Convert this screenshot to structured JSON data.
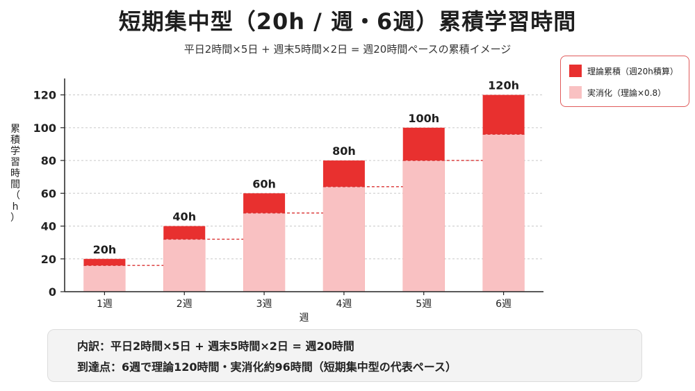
{
  "title": "短期集中型（20h / 週・6週）累積学習時間",
  "subtitle": "平日2時間×5日 + 週末5時間×2日 = 週20時間ペースの累積イメージ",
  "colors": {
    "theory": "#e8302f",
    "actual": "#f9c1c2",
    "grid": "#c8c8c8",
    "dashed": "#d93030",
    "legend_border": "#e05a5a"
  },
  "legend": {
    "theory_label": "理論累積（週20h積算）",
    "actual_label": "実消化（理論×0.8）"
  },
  "chart_data": {
    "type": "bar",
    "categories": [
      "1週",
      "2週",
      "3週",
      "4週",
      "5週",
      "6週"
    ],
    "series": [
      {
        "name": "理論累積（週20h積算）",
        "values": [
          20,
          40,
          60,
          80,
          100,
          120
        ]
      },
      {
        "name": "実消化（理論×0.8）",
        "values": [
          16,
          32,
          48,
          64,
          80,
          96
        ]
      }
    ],
    "data_labels": [
      "20h",
      "40h",
      "60h",
      "80h",
      "100h",
      "120h"
    ],
    "xlabel": "週",
    "ylabel": "累積学習時間（h）",
    "ylim": [
      0,
      130
    ],
    "yticks": [
      0,
      20,
      40,
      60,
      80,
      100,
      120
    ],
    "grid": true,
    "legend_position": "top-right"
  },
  "note": {
    "line1": "内訳：平日2時間×5日 + 週末5時間×2日 = 週20時間",
    "line2": "到達点：6週で理論120時間・実消化約96時間（短期集中型の代表ペース）"
  }
}
